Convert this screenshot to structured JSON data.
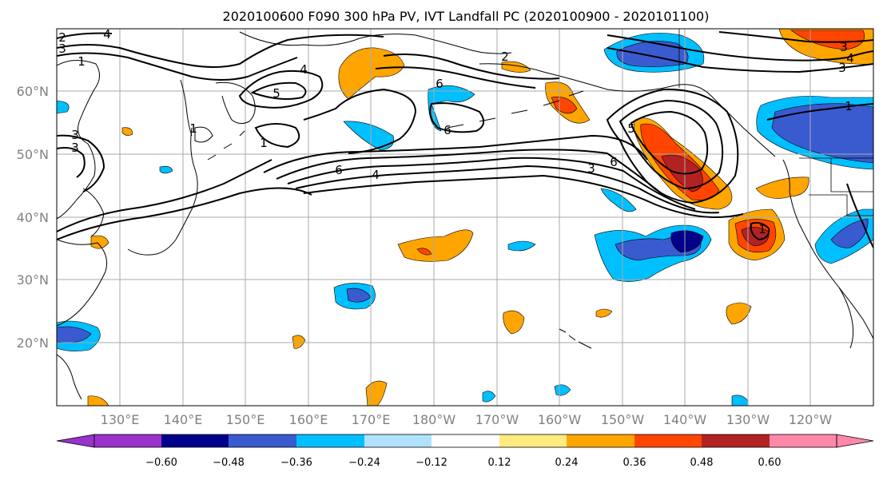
{
  "title": "2020100600 F090 300 hPa PV, IVT Landfall PC (2020100900 - 2020101100)",
  "lat_labels": [
    "60°N",
    "50°N",
    "40°N",
    "30°N",
    "20°N"
  ],
  "lon_labels": [
    "130°E",
    "140°E",
    "150°E",
    "160°E",
    "170°E",
    "180°W",
    "170°W",
    "160°W",
    "150°W",
    "140°W",
    "130°W",
    "120°W"
  ],
  "colorbar": {
    "colors": [
      "#9932cc",
      "#00008b",
      "#3a5bcf",
      "#00bfff",
      "#b0e2ff",
      "#ffffff",
      "#ffeb80",
      "#ffa500",
      "#ff4500",
      "#b22222",
      "#ff88aa"
    ],
    "tick_labels": [
      "−0.60",
      "−0.48",
      "−0.36",
      "−0.24",
      "−0.12",
      "0.12",
      "0.24",
      "0.36",
      "0.48",
      "0.60"
    ]
  },
  "contour_labels": [
    "2",
    "4",
    "3",
    "1",
    "4",
    "5",
    "1",
    "6",
    "6",
    "3",
    "1",
    "3",
    "6",
    "4",
    "2",
    "3",
    "6",
    "5",
    "3",
    "4",
    "1",
    "3",
    "1"
  ],
  "colors": {
    "grid": "#a9a9a9",
    "coast": "#000000",
    "contour": "#000000"
  }
}
